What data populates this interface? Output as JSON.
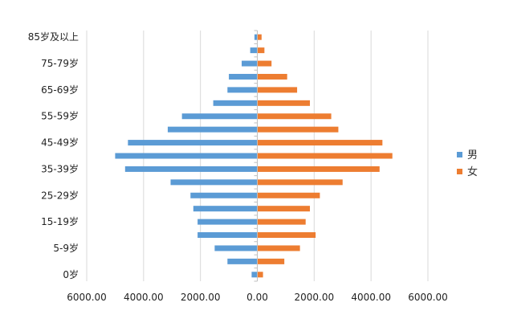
{
  "chart_data": {
    "type": "bar",
    "orientation": "horizontal",
    "title": "",
    "xlabel": "",
    "ylabel": "",
    "xlim": [
      -6000,
      6000
    ],
    "x_ticks": [
      -6000,
      -4000,
      -2000,
      0,
      2000,
      4000,
      6000
    ],
    "x_tick_labels": [
      "6000.00",
      "4000.00",
      "2000.00",
      "0.00",
      "2000.00",
      "4000.00",
      "6000.00"
    ],
    "categories": [
      "0岁",
      "",
      "5-9岁",
      "",
      "15-19岁",
      "",
      "25-29岁",
      "",
      "35-39岁",
      "",
      "45-49岁",
      "",
      "55-59岁",
      "",
      "65-69岁",
      "",
      "75-79岁",
      "",
      "85岁及以上"
    ],
    "grid": true,
    "legend_position": "right",
    "series": [
      {
        "name": "男",
        "color": "#5B9BD5",
        "values": [
          -200,
          -1050,
          -1500,
          -2100,
          -2100,
          -2250,
          -2350,
          -3050,
          -4650,
          -5000,
          -4550,
          -3150,
          -2650,
          -1550,
          -1050,
          -1000,
          -550,
          -250,
          -100
        ]
      },
      {
        "name": "女",
        "color": "#ED7D31",
        "values": [
          200,
          950,
          1500,
          2050,
          1700,
          1850,
          2200,
          3000,
          4300,
          4750,
          4400,
          2850,
          2600,
          1850,
          1400,
          1050,
          500,
          250,
          150
        ]
      }
    ]
  }
}
